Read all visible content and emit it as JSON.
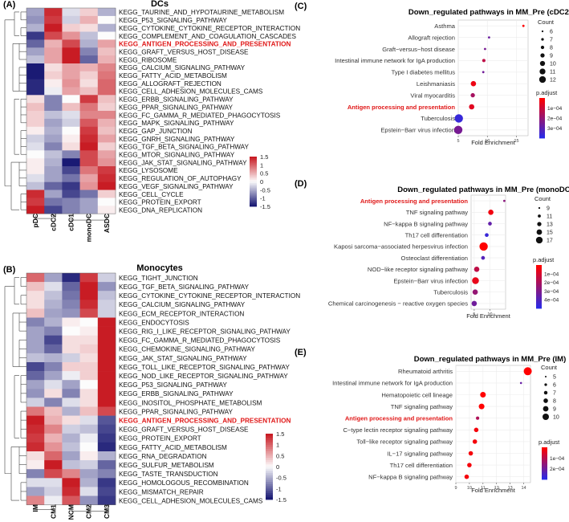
{
  "chart_data": [
    {
      "type": "heatmap",
      "panel_label": "(A)",
      "title": "DCs",
      "columns": [
        "pDC",
        "cDC2",
        "cDC1",
        "monoDC",
        "ASDC"
      ],
      "rows": [
        "KEGG_TAURINE_AND_HYPOTAURINE_METABOLISM",
        "KEGG_P53_SIGNALING_PATHWAY",
        "KEGG_CYTOKINE_CYTOKINE_RECEPTOR_INTERACTION",
        "KEGG_COMPLEMENT_AND_COAGULATION_CASCADES",
        "KEGG_ANTIGEN_PROCESSING_AND_PRESENTATION",
        "KEGG_GRAFT_VERSUS_HOST_DISEASE",
        "KEGG_RIBOSOME",
        "KEGG_CALCIUM_SIGNALING_PATHWAY",
        "KEGG_FATTY_ACID_METABOLISM",
        "KEGG_ALLOGRAFT_REJECTION",
        "KEGG_CELL_ADHESION_MOLECULES_CAMS",
        "KEGG_ERBB_SIGNALING_PATHWAY",
        "KEGG_PPAR_SIGNALING_PATHWAY",
        "KEGG_FC_GAMMA_R_MEDIATED_PHAGOCYTOSIS",
        "KEGG_MAPK_SIGNALING_PATHWAY",
        "KEGG_GAP_JUNCTION",
        "KEGG_GNRH_SIGNALING_PATHWAY",
        "KEGG_TGF_BETA_SIGNALING_PATHWAY",
        "KEGG_MTOR_SIGNALING_PATHWAY",
        "KEGG_JAK_STAT_SIGNALING_PATHWAY",
        "KEGG_LYSOSOME",
        "KEGG_REGULATION_OF_AUTOPHAGY",
        "KEGG_VEGF_SIGNALING_PATHWAY",
        "KEGG_CELL_CYCLE",
        "KEGG_PROTEIN_EXPORT",
        "KEGG_DNA_REPLICATION"
      ],
      "highlight_row": 4,
      "values": [
        [
          -0.6,
          1.4,
          -0.2,
          0.3,
          -0.5
        ],
        [
          -0.7,
          1.3,
          -0.3,
          0.5,
          0.0
        ],
        [
          -0.5,
          1.5,
          0.3,
          0.2,
          -0.5
        ],
        [
          -1.3,
          1.2,
          0.7,
          -0.4,
          0.0
        ],
        [
          -1.0,
          0.5,
          1.2,
          -0.5,
          0.6
        ],
        [
          -0.6,
          0.6,
          1.5,
          -0.8,
          0.4
        ],
        [
          -0.4,
          0.6,
          1.5,
          -1.0,
          0.5
        ],
        [
          -1.5,
          0.2,
          0.6,
          0.5,
          0.8
        ],
        [
          -1.5,
          0.3,
          0.6,
          0.3,
          0.9
        ],
        [
          -1.4,
          0.1,
          0.7,
          0.2,
          1.0
        ],
        [
          -1.4,
          -0.1,
          0.6,
          0.4,
          1.0
        ],
        [
          0.2,
          -0.8,
          0.0,
          1.3,
          0.4
        ],
        [
          0.4,
          -0.8,
          0.4,
          0.9,
          0.3
        ],
        [
          0.3,
          -0.4,
          -0.2,
          0.8,
          0.8
        ],
        [
          0.3,
          -0.6,
          -0.3,
          1.1,
          0.5
        ],
        [
          0.1,
          -0.5,
          0.0,
          1.3,
          0.4
        ],
        [
          -0.3,
          -0.6,
          0.1,
          1.4,
          0.6
        ],
        [
          -0.2,
          -0.8,
          0.2,
          1.5,
          0.3
        ],
        [
          0.0,
          -0.4,
          -0.8,
          1.2,
          0.6
        ],
        [
          0.1,
          -0.5,
          -1.6,
          1.2,
          0.7
        ],
        [
          0.1,
          -0.6,
          -1.2,
          0.9,
          1.3
        ],
        [
          -0.2,
          -0.6,
          -0.9,
          0.6,
          1.4
        ],
        [
          -0.4,
          -1.0,
          -1.3,
          0.7,
          1.5
        ],
        [
          1.4,
          -0.6,
          -1.2,
          -0.9,
          0.3
        ],
        [
          1.3,
          -0.9,
          -0.8,
          -0.6,
          0.0
        ],
        [
          1.5,
          -1.2,
          -0.8,
          -0.6,
          0.1
        ]
      ],
      "scale": {
        "min": -1.5,
        "max": 1.5,
        "ticks": [
          "1.5",
          "1",
          "0.5",
          "0",
          "-0.5",
          "-1",
          "-1.5"
        ]
      }
    },
    {
      "type": "heatmap",
      "panel_label": "(B)",
      "title": "Monocytes",
      "columns": [
        "IM",
        "CM1",
        "NCM",
        "CM2",
        "CM3"
      ],
      "rows": [
        "KEGG_TIGHT_JUNCTION",
        "KEGG_TGF_BETA_SIGNALING_PATHWAY",
        "KEGG_CYTOKINE_CYTOKINE_RECEPTOR_INTERACTION",
        "KEGG_CALCIUM_SIGNALING_PATHWAY",
        "KEGG_ECM_RECEPTOR_INTERACTION",
        "KEGG_ENDOCYTOSIS",
        "KEGG_RIG_I_LIKE_RECEPTOR_SIGNALING_PATHWAY",
        "KEGG_FC_GAMMA_R_MEDIATED_PHAGOCYTOSIS",
        "KEGG_CHEMOKINE_SIGNALING_PATHWAY",
        "KEGG_JAK_STAT_SIGNALING_PATHWAY",
        "KEGG_TOLL_LIKE_RECEPTOR_SIGNALING_PATHWAY",
        "KEGG_NOD_LIKE_RECEPTOR_SIGNALING_PATHWAY",
        "KEGG_P53_SIGNALING_PATHWAY",
        "KEGG_ERBB_SIGNALING_PATHWAY",
        "KEGG_INOSITOL_PHOSPHATE_METABOLISM",
        "KEGG_PPAR_SIGNALING_PATHWAY",
        "KEGG_ANTIGEN_PROCESSING_AND_PRESENTATION",
        "KEGG_GRAFT_VERSUS_HOST_DISEASE",
        "KEGG_PROTEIN_EXPORT",
        "KEGG_FATTY_ACID_METABOLISM",
        "KEGG_RNA_DEGRADATION",
        "KEGG_SULFUR_METABOLISM",
        "KEGG_TASTE_TRANSDUCTION",
        "KEGG_HOMOLOGOUS_RECOMBINATION",
        "KEGG_MISMATCH_REPAIR",
        "KEGG_CELL_ADHESION_MOLECULES_CAMS"
      ],
      "highlight_row": 16,
      "values": [
        [
          1.0,
          -0.6,
          -1.4,
          1.3,
          -0.3
        ],
        [
          0.4,
          -0.2,
          -1.0,
          1.5,
          -0.7
        ],
        [
          0.2,
          -0.4,
          -0.9,
          1.5,
          -0.4
        ],
        [
          0.2,
          -0.5,
          -0.8,
          1.4,
          -0.3
        ],
        [
          0.4,
          -0.6,
          -0.7,
          1.2,
          -0.3
        ],
        [
          -0.8,
          -0.5,
          0.1,
          0.0,
          1.5
        ],
        [
          -0.6,
          -0.8,
          0.0,
          0.1,
          1.5
        ],
        [
          -0.6,
          -1.2,
          0.2,
          0.2,
          1.5
        ],
        [
          -0.6,
          -1.0,
          0.2,
          0.3,
          1.5
        ],
        [
          -0.4,
          -0.5,
          -0.3,
          0.2,
          1.5
        ],
        [
          -1.2,
          -0.8,
          0.3,
          0.3,
          1.5
        ],
        [
          -1.0,
          -0.6,
          -0.1,
          0.3,
          1.5
        ],
        [
          -0.6,
          -0.2,
          -0.6,
          0.0,
          1.5
        ],
        [
          -0.7,
          0.2,
          -0.8,
          0.2,
          1.5
        ],
        [
          -0.3,
          -0.8,
          -0.2,
          0.2,
          1.5
        ],
        [
          0.9,
          0.4,
          -0.5,
          0.4,
          1.2
        ],
        [
          1.5,
          0.5,
          0.2,
          -0.2,
          -1.1
        ],
        [
          1.4,
          0.8,
          -0.3,
          -0.4,
          -1.2
        ],
        [
          1.3,
          0.5,
          -0.5,
          -0.1,
          -1.3
        ],
        [
          1.4,
          0.7,
          -0.4,
          0.0,
          -1.4
        ],
        [
          0.2,
          1.0,
          -0.6,
          0.1,
          -0.5
        ],
        [
          0.1,
          1.5,
          -0.4,
          -0.3,
          -1.0
        ],
        [
          -0.8,
          1.2,
          0.8,
          -0.6,
          -0.8
        ],
        [
          -0.2,
          -0.2,
          1.5,
          -0.5,
          -1.3
        ],
        [
          -0.6,
          -0.3,
          1.4,
          -0.2,
          -1.2
        ],
        [
          0.8,
          -0.1,
          1.1,
          -0.7,
          -1.3
        ]
      ],
      "scale": {
        "min": -1.5,
        "max": 1.5,
        "ticks": [
          "1.5",
          "1",
          "0.5",
          "0",
          "-0.5",
          "-1",
          "-1.5"
        ]
      }
    },
    {
      "type": "scatter",
      "panel_label": "(C)",
      "title": "Down_regulated pathways in MM_Pre (cDC2)",
      "xlabel": "Fold Enrichment",
      "xlim": [
        5,
        17
      ],
      "xticks": [
        5,
        10,
        15
      ],
      "highlight_row": 7,
      "points": [
        {
          "term": "Asthma",
          "x": 16.2,
          "count": 6,
          "padj": 1e-05
        },
        {
          "term": "Allograft rejection",
          "x": 10.3,
          "count": 6,
          "padj": 0.00026
        },
        {
          "term": "Graft−versus−host disease",
          "x": 9.6,
          "count": 6,
          "padj": 0.00024
        },
        {
          "term": "Intestinal immune network for IgA production",
          "x": 9.4,
          "count": 7,
          "padj": 0.00012
        },
        {
          "term": "Type I diabetes mellitus",
          "x": 9.3,
          "count": 6,
          "padj": 0.00025
        },
        {
          "term": "Leishmaniasis",
          "x": 7.6,
          "count": 9,
          "padj": 4e-05
        },
        {
          "term": "Viral myocarditis",
          "x": 7.5,
          "count": 8,
          "padj": 0.00016
        },
        {
          "term": "Antigen processing and presentation",
          "x": 7.3,
          "count": 9,
          "padj": 6e-05
        },
        {
          "term": "Tuberculosis",
          "x": 5.1,
          "count": 12,
          "padj": 0.00035
        },
        {
          "term": "Epstein−Barr virus infection",
          "x": 5.0,
          "count": 12,
          "padj": 0.00024
        }
      ],
      "size_legend": {
        "title": "Count",
        "values": [
          6,
          7,
          8,
          9,
          10,
          11,
          12
        ]
      },
      "color_legend": {
        "title": "p.adjust",
        "ticks": [
          "1e−04",
          "2e−04",
          "3e−04"
        ],
        "range": [
          1e-05,
          0.00037
        ]
      },
      "low_color": "#ff0000",
      "high_color": "#2a2ae6"
    },
    {
      "type": "scatter",
      "panel_label": "(D)",
      "title": "Down_regulated pathways in MM_Pre (monoDC)",
      "xlabel": "Fold Enrichment",
      "xlim": [
        4,
        15
      ],
      "xticks": [
        5,
        10
      ],
      "highlight_row": 0,
      "points": [
        {
          "term": "Antigen processing and presentation",
          "x": 14.6,
          "count": 9,
          "padj": 0.00026
        },
        {
          "term": "TNF signaling pathway",
          "x": 10.3,
          "count": 13,
          "padj": 4e-05
        },
        {
          "term": "NF−kappa B signaling pathway",
          "x": 10.0,
          "count": 11,
          "padj": 0.00035
        },
        {
          "term": "Th17 cell differentiation",
          "x": 9.0,
          "count": 11,
          "padj": 0.00044
        },
        {
          "term": "Kaposi sarcoma−associated herpesvirus infection",
          "x": 8.0,
          "count": 17,
          "padj": 1e-05
        },
        {
          "term": "Osteoclast differentiation",
          "x": 7.8,
          "count": 11,
          "padj": 0.00038
        },
        {
          "term": "NOD−like receptor signaling pathway",
          "x": 5.8,
          "count": 13,
          "padj": 0.00015
        },
        {
          "term": "Epstein−Barr virus infection",
          "x": 5.4,
          "count": 15,
          "padj": 6e-05
        },
        {
          "term": "Tuberculosis",
          "x": 5.3,
          "count": 13,
          "padj": 0.00024
        },
        {
          "term": "Chemical carcinogenesis − reactive oxygen species",
          "x": 5.0,
          "count": 13,
          "padj": 0.00032
        }
      ],
      "size_legend": {
        "title": "Count",
        "values": [
          9,
          11,
          13,
          15,
          17
        ]
      },
      "color_legend": {
        "title": "p.adjust",
        "ticks": [
          "1e−04",
          "2e−04",
          "3e−04",
          "4e−04"
        ],
        "range": [
          1e-05,
          0.00047
        ]
      },
      "low_color": "#ff0000",
      "high_color": "#2a2ae6"
    },
    {
      "type": "scatter",
      "panel_label": "(E)",
      "title": "Down_regulated pathways in MM_Pre (IM)",
      "xlabel": "Fold Enrichment",
      "xlim": [
        9,
        14.5
      ],
      "xticks": [
        9,
        10,
        11,
        12,
        13,
        14
      ],
      "highlight_row": 4,
      "points": [
        {
          "term": "Rheumatoid arthritis",
          "x": 14.3,
          "count": 10,
          "padj": 1e-05
        },
        {
          "term": "Intestinal immune network for IgA production",
          "x": 13.8,
          "count": 5,
          "padj": 0.00016
        },
        {
          "term": "Hematopoietic cell lineage",
          "x": 11.0,
          "count": 8,
          "padj": 1e-05
        },
        {
          "term": "TNF signaling pathway",
          "x": 10.9,
          "count": 8,
          "padj": 1e-05
        },
        {
          "term": "Antigen processing and presentation",
          "x": 10.6,
          "count": 6,
          "padj": 9e-05
        },
        {
          "term": "C−type lectin receptor signaling pathway",
          "x": 10.5,
          "count": 7,
          "padj": 2e-05
        },
        {
          "term": "Toll−like receptor signaling pathway",
          "x": 10.4,
          "count": 7,
          "padj": 2e-05
        },
        {
          "term": "IL−17 signaling pathway",
          "x": 10.1,
          "count": 7,
          "padj": 2e-05
        },
        {
          "term": "Th17 cell differentiation",
          "x": 10.0,
          "count": 7,
          "padj": 2e-05
        },
        {
          "term": "NF−kappa B signaling pathway",
          "x": 9.8,
          "count": 7,
          "padj": 2e-05
        }
      ],
      "size_legend": {
        "title": "Count",
        "values": [
          5,
          6,
          7,
          8,
          9,
          10
        ]
      },
      "color_legend": {
        "title": "p.adjust",
        "ticks": [
          "1e−04",
          "2e−04"
        ],
        "range": [
          1e-05,
          0.00022
        ]
      },
      "low_color": "#ff0000",
      "high_color": "#2a2ae6"
    }
  ]
}
